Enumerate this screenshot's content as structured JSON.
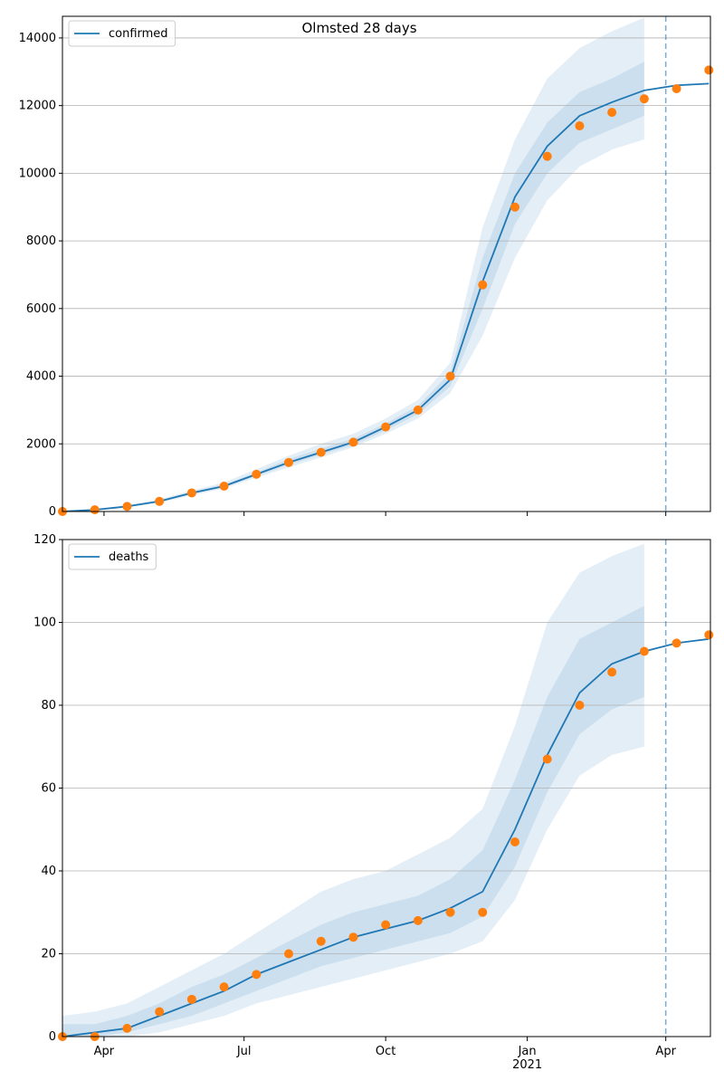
{
  "chart_data": [
    {
      "type": "line",
      "title": "Olmsted 28 days",
      "legend": "upper left",
      "grid": true,
      "x": [
        64,
        85,
        106,
        127,
        148,
        169,
        190,
        211,
        232,
        253,
        274,
        295,
        316,
        337,
        358,
        379,
        400,
        421,
        442,
        463,
        484
      ],
      "xlim": [
        64,
        485
      ],
      "xticks": [
        91,
        182,
        274,
        366,
        456
      ],
      "vline": 456,
      "ylim": [
        0,
        14640
      ],
      "yticks": [
        0,
        2000,
        4000,
        6000,
        8000,
        10000,
        12000,
        14000
      ],
      "series": [
        {
          "name": "confirmed",
          "color": "#1f77b4",
          "values": [
            0,
            50,
            150,
            300,
            550,
            750,
            1100,
            1450,
            1750,
            2050,
            2500,
            3000,
            3900,
            6800,
            9300,
            10800,
            11700,
            12100,
            12450,
            12600,
            12650
          ]
        },
        {
          "style": "scatter",
          "color": "#ff7f0e",
          "values": [
            0,
            50,
            150,
            300,
            550,
            750,
            1100,
            1450,
            1750,
            2050,
            2500,
            3000,
            4000,
            6700,
            9000,
            10500,
            11400,
            11800,
            12200,
            12500,
            13050
          ]
        }
      ],
      "bands": [
        {
          "lower": [
            0,
            40,
            120,
            260,
            480,
            680,
            1000,
            1300,
            1600,
            1900,
            2300,
            2750,
            3500,
            5200,
            7500,
            9200,
            10200,
            10700,
            11000,
            null,
            null
          ],
          "upper": [
            0,
            70,
            190,
            360,
            620,
            860,
            1250,
            1650,
            2000,
            2300,
            2750,
            3300,
            4400,
            8400,
            11000,
            12800,
            13700,
            14200,
            14600,
            null,
            null
          ]
        },
        {
          "lower": [
            0,
            45,
            135,
            280,
            510,
            720,
            1050,
            1380,
            1680,
            1970,
            2400,
            2880,
            3700,
            6000,
            8500,
            10000,
            10900,
            11300,
            11700,
            null,
            null
          ],
          "upper": [
            0,
            60,
            165,
            330,
            590,
            800,
            1150,
            1550,
            1860,
            2150,
            2600,
            3120,
            4100,
            7500,
            10000,
            11500,
            12400,
            12800,
            13300,
            null,
            null
          ]
        }
      ],
      "band_color": "#1f77b4"
    },
    {
      "type": "line",
      "legend": "upper left",
      "grid": true,
      "x": [
        64,
        85,
        106,
        127,
        148,
        169,
        190,
        211,
        232,
        253,
        274,
        295,
        316,
        337,
        358,
        379,
        400,
        421,
        442,
        463,
        484
      ],
      "xlim": [
        64,
        485
      ],
      "xticks": [
        {
          "value": 91,
          "label": "Apr"
        },
        {
          "value": 182,
          "label": "Jul"
        },
        {
          "value": 274,
          "label": "Oct"
        },
        {
          "value": 366,
          "label": "Jan\n2021"
        },
        {
          "value": 456,
          "label": "Apr"
        }
      ],
      "vline": 456,
      "ylim": [
        0,
        120
      ],
      "yticks": [
        0,
        20,
        40,
        60,
        80,
        100,
        120
      ],
      "series": [
        {
          "name": "deaths",
          "color": "#1f77b4",
          "values": [
            0,
            1,
            2,
            5,
            8,
            11,
            15,
            18,
            21,
            24,
            26,
            28,
            31,
            35,
            50,
            68,
            83,
            90,
            93,
            95,
            96
          ]
        },
        {
          "style": "scatter",
          "color": "#ff7f0e",
          "values": [
            0,
            0,
            2,
            6,
            9,
            12,
            15,
            20,
            23,
            24,
            27,
            28,
            30,
            30,
            47,
            67,
            80,
            88,
            93,
            95,
            97
          ]
        }
      ],
      "bands": [
        {
          "lower": [
            0,
            0,
            0,
            1,
            3,
            5,
            8,
            10,
            12,
            14,
            16,
            18,
            20,
            23,
            33,
            50,
            63,
            68,
            70,
            null,
            null
          ],
          "upper": [
            5,
            6,
            8,
            12,
            16,
            20,
            25,
            30,
            35,
            38,
            40,
            44,
            48,
            55,
            75,
            100,
            112,
            116,
            119,
            null,
            null
          ]
        },
        {
          "lower": [
            0,
            0,
            1,
            3,
            5,
            8,
            11,
            14,
            17,
            19,
            21,
            23,
            25,
            29,
            41,
            59,
            73,
            79,
            82,
            null,
            null
          ],
          "upper": [
            3,
            3,
            5,
            8,
            12,
            15,
            19,
            23,
            27,
            30,
            32,
            34,
            38,
            45,
            62,
            82,
            96,
            100,
            104,
            null,
            null
          ]
        }
      ],
      "band_color": "#1f77b4"
    }
  ]
}
